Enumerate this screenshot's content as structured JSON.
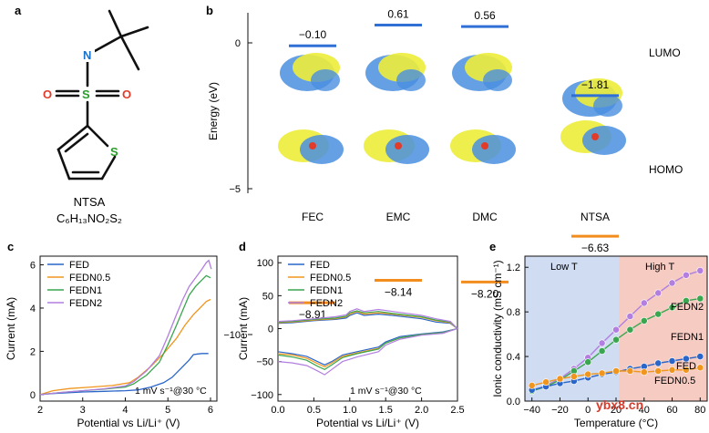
{
  "colors": {
    "lumo": "#2f6fd6",
    "homo": "#f28c1c",
    "fed": "#2a66c9",
    "fedn05": "#f0961e",
    "fedn1": "#3aa64f",
    "fedn2": "#b27ee0",
    "low_t_band": "#cfdcf2",
    "high_t_band": "#f6cbc2",
    "orb_yellow": "#ecec3a",
    "orb_blue": "#4a8fe0",
    "nitrogen": "#1a73c9",
    "oxygen": "#e23b2a",
    "sulfur": "#2a9d2a",
    "watermark": "#d93a2a"
  },
  "panel_a": {
    "label": "a",
    "atoms": {
      "n": "N",
      "s_center": "S",
      "o_left": "O",
      "o_right": "O",
      "s_ring": "S"
    },
    "name": "NTSA",
    "formula": "C₆H₁₃NO₂S₂"
  },
  "panel_b": {
    "label": "b",
    "ylabel": "Energy (eV)",
    "yticks": [
      "0",
      "−5",
      "−10"
    ],
    "lumo_label": "LUMO",
    "homo_label": "HOMO",
    "molecules": [
      {
        "name": "FEC",
        "lumo": -0.1,
        "homo": -8.91,
        "lumo_text": "−0.10",
        "homo_text": "−8.91"
      },
      {
        "name": "EMC",
        "lumo": 0.61,
        "homo": -8.14,
        "lumo_text": "0.61",
        "homo_text": "−8.14"
      },
      {
        "name": "DMC",
        "lumo": 0.56,
        "homo": -8.2,
        "lumo_text": "0.56",
        "homo_text": "−8.20"
      },
      {
        "name": "NTSA",
        "lumo": -1.81,
        "homo": -6.63,
        "lumo_text": "−1.81",
        "homo_text": "−6.63"
      }
    ]
  },
  "panel_c": {
    "label": "c",
    "annotation": "1 mV s⁻¹@30 °C"
  },
  "panel_d": {
    "label": "d",
    "annotation": "1 mV s⁻¹@30 °C"
  },
  "panel_e": {
    "label": "e",
    "low_t": "Low T",
    "high_t": "High T",
    "series_labels": {
      "FEDN2": "FEDN2",
      "FEDN1": "FEDN1",
      "FED": "FED",
      "FEDN0.5": "FEDN0.5"
    }
  },
  "watermark": "ybx8.cn",
  "chart_data": [
    {
      "type": "line",
      "id": "c",
      "title": "",
      "xlabel": "Potential vs Li/Li⁺ (V)",
      "ylabel": "Current (mA)",
      "xlim": [
        2,
        6.15
      ],
      "ylim": [
        -0.3,
        6.4
      ],
      "xticks": [
        "2",
        "3",
        "4",
        "5",
        "6"
      ],
      "yticks": [
        "0",
        "2",
        "4",
        "6"
      ],
      "series": [
        {
          "name": "FED",
          "x": [
            2,
            2.3,
            3,
            3.5,
            4,
            4.3,
            4.6,
            4.9,
            5.1,
            5.3,
            5.5,
            5.6,
            5.7,
            5.8,
            5.95
          ],
          "y": [
            0,
            0.05,
            0.12,
            0.15,
            0.18,
            0.22,
            0.35,
            0.55,
            0.8,
            1.2,
            1.6,
            1.85,
            1.88,
            1.9,
            1.9
          ]
        },
        {
          "name": "FEDN0.5",
          "x": [
            2,
            2.3,
            2.7,
            3.2,
            3.7,
            4.1,
            4.3,
            4.6,
            4.9,
            5.2,
            5.4,
            5.6,
            5.75,
            5.9,
            6.0
          ],
          "y": [
            0,
            0.18,
            0.28,
            0.35,
            0.42,
            0.55,
            0.8,
            1.3,
            1.9,
            2.6,
            3.2,
            3.7,
            4.0,
            4.3,
            4.4
          ]
        },
        {
          "name": "FEDN1",
          "x": [
            2,
            2.5,
            3,
            3.5,
            4,
            4.2,
            4.5,
            4.8,
            5.0,
            5.2,
            5.35,
            5.5,
            5.65,
            5.8,
            5.9,
            6.0
          ],
          "y": [
            0,
            0.1,
            0.18,
            0.25,
            0.35,
            0.5,
            0.9,
            1.5,
            2.3,
            3.2,
            3.9,
            4.6,
            5.0,
            5.3,
            5.5,
            5.4
          ]
        },
        {
          "name": "FEDN2",
          "x": [
            2,
            2.5,
            3,
            3.5,
            4,
            4.2,
            4.5,
            4.8,
            5.0,
            5.2,
            5.35,
            5.5,
            5.65,
            5.8,
            5.9,
            5.96,
            6.02
          ],
          "y": [
            0,
            0.1,
            0.18,
            0.27,
            0.4,
            0.6,
            1.1,
            1.8,
            2.7,
            3.7,
            4.4,
            5.0,
            5.4,
            5.8,
            6.1,
            6.2,
            5.8
          ]
        }
      ]
    },
    {
      "type": "line",
      "id": "d",
      "title": "",
      "xlabel": "Potential vs Li/Li⁺ (V)",
      "ylabel": "Current (mA)",
      "xlim": [
        0,
        2.5
      ],
      "ylim": [
        -110,
        110
      ],
      "xticks": [
        "0.0",
        "0.5",
        "1.0",
        "1.5",
        "2.0",
        "2.5"
      ],
      "yticks": [
        "100",
        "50",
        "0",
        "−50",
        "−100"
      ],
      "series": [
        {
          "name": "FED",
          "x": [
            0,
            0.2,
            0.4,
            0.55,
            0.65,
            0.75,
            0.9,
            1.1,
            1.4,
            1.5,
            1.7,
            2.0,
            2.3,
            2.5,
            2.4,
            2.2,
            2.0,
            1.6,
            1.4,
            1.2,
            1.1,
            1.0,
            0.95,
            0.8,
            0.5,
            0.2,
            0
          ],
          "y": [
            -35,
            -38,
            -42,
            -50,
            -55,
            -50,
            -40,
            -35,
            -28,
            -20,
            -12,
            -8,
            -5,
            0,
            8,
            10,
            15,
            20,
            22,
            20,
            24,
            20,
            16,
            14,
            12,
            9,
            8
          ]
        },
        {
          "name": "FEDN0.5",
          "x": [
            0,
            0.2,
            0.4,
            0.55,
            0.65,
            0.75,
            0.9,
            1.1,
            1.4,
            1.5,
            1.7,
            2.0,
            2.3,
            2.5,
            2.4,
            2.2,
            2.0,
            1.6,
            1.4,
            1.2,
            1.1,
            1.0,
            0.95,
            0.8,
            0.5,
            0.2,
            0
          ],
          "y": [
            -38,
            -40,
            -45,
            -53,
            -58,
            -52,
            -42,
            -37,
            -30,
            -22,
            -14,
            -9,
            -6,
            0,
            9,
            12,
            17,
            22,
            24,
            22,
            26,
            22,
            18,
            15,
            13,
            10,
            9
          ]
        },
        {
          "name": "FEDN1",
          "x": [
            0,
            0.2,
            0.4,
            0.55,
            0.65,
            0.75,
            0.9,
            1.1,
            1.4,
            1.5,
            1.7,
            2.0,
            2.3,
            2.5,
            2.4,
            2.2,
            2.0,
            1.6,
            1.4,
            1.2,
            1.1,
            1.0,
            0.95,
            0.8,
            0.5,
            0.2,
            0
          ],
          "y": [
            -40,
            -43,
            -48,
            -57,
            -62,
            -55,
            -44,
            -38,
            -31,
            -22,
            -14,
            -9,
            -6,
            0,
            10,
            13,
            18,
            23,
            26,
            24,
            27,
            24,
            19,
            16,
            14,
            11,
            10
          ]
        },
        {
          "name": "FEDN2",
          "x": [
            0,
            0.2,
            0.4,
            0.55,
            0.65,
            0.75,
            0.9,
            1.1,
            1.4,
            1.5,
            1.7,
            2.0,
            2.3,
            2.5,
            2.4,
            2.2,
            2.0,
            1.6,
            1.4,
            1.2,
            1.1,
            1.0,
            0.95,
            0.8,
            0.5,
            0.2,
            0
          ],
          "y": [
            -50,
            -52,
            -56,
            -64,
            -70,
            -62,
            -50,
            -43,
            -35,
            -25,
            -16,
            -10,
            -7,
            0,
            11,
            15,
            20,
            26,
            29,
            26,
            30,
            26,
            21,
            18,
            15,
            12,
            11
          ]
        }
      ]
    },
    {
      "type": "line",
      "id": "e",
      "title": "",
      "xlabel": "Temperature (°C)",
      "ylabel": "Ionic conductivity (mS cm⁻¹)",
      "xlim": [
        -45,
        85
      ],
      "ylim": [
        0,
        1.3
      ],
      "xticks": [
        "−40",
        "−20",
        "0",
        "20",
        "40",
        "60",
        "80"
      ],
      "yticks": [
        "0.0",
        "0.4",
        "0.8",
        "1.2"
      ],
      "x": [
        -40,
        -30,
        -20,
        -10,
        0,
        10,
        20,
        30,
        40,
        50,
        60,
        70,
        80
      ],
      "series": [
        {
          "name": "FEDN2",
          "values": [
            0.09,
            0.14,
            0.2,
            0.29,
            0.39,
            0.52,
            0.64,
            0.76,
            0.88,
            0.97,
            1.06,
            1.13,
            1.17
          ]
        },
        {
          "name": "FEDN1",
          "values": [
            0.09,
            0.13,
            0.19,
            0.27,
            0.35,
            0.45,
            0.55,
            0.64,
            0.72,
            0.78,
            0.84,
            0.9,
            0.92
          ]
        },
        {
          "name": "FED",
          "values": [
            0.1,
            0.13,
            0.16,
            0.18,
            0.21,
            0.24,
            0.26,
            0.29,
            0.31,
            0.34,
            0.36,
            0.38,
            0.4
          ]
        },
        {
          "name": "FEDN0.5",
          "values": [
            0.14,
            0.17,
            0.2,
            0.22,
            0.24,
            0.25,
            0.27,
            0.27,
            0.26,
            0.27,
            0.28,
            0.28,
            0.3
          ]
        }
      ]
    }
  ]
}
